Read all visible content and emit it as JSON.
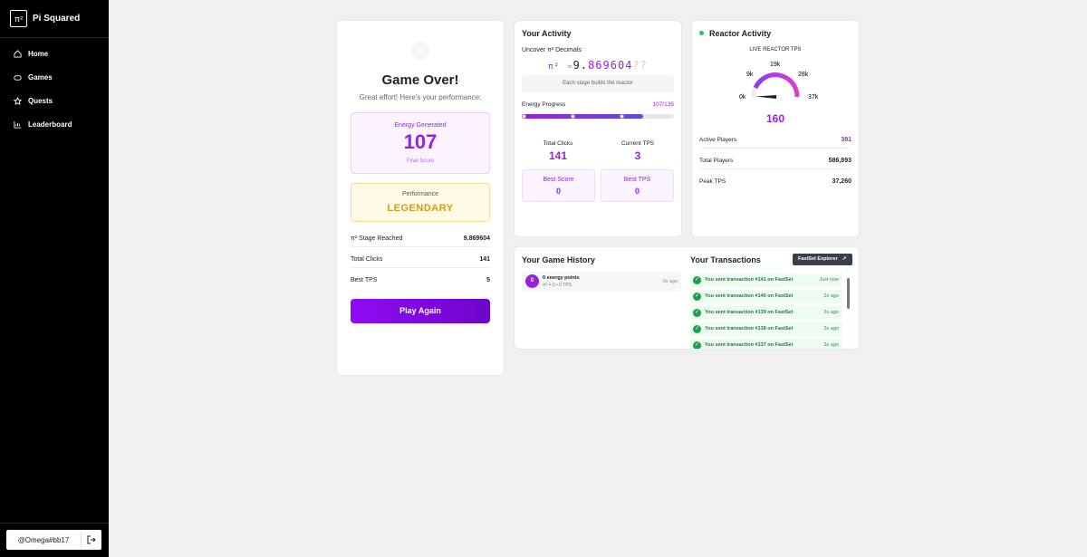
{
  "sidebar": {
    "brand": {
      "logo": "π²",
      "name": "Pi Squared"
    },
    "nav": [
      "Home",
      "Games",
      "Quests",
      "Leaderboard"
    ],
    "user": "@Omega#bb17"
  },
  "game_over": {
    "title": "Game Over!",
    "subtitle": "Great effort! Here's your performance:",
    "energy": {
      "label": "Energy Generated",
      "value": 107,
      "caption": "Final Score"
    },
    "performance": {
      "label": "Performance",
      "value": "LEGENDARY"
    },
    "stats": [
      {
        "label": "π² Stage Reached",
        "value": "9.869604"
      },
      {
        "label": "Total Clicks",
        "value": 141
      },
      {
        "label": "Best TPS",
        "value": 5
      }
    ],
    "button": "Play Again"
  },
  "activity": {
    "title": "Your Activity",
    "decimals_label": "Uncover π² Decimals",
    "formula": {
      "symbol": "π²",
      "equals": "=",
      "integer": 9,
      "point": ".",
      "digits": "869604",
      "unknown": "??"
    },
    "hint": "Each stage builds the reactor",
    "progress": {
      "label": "Energy Progress",
      "value": "107/135"
    },
    "stats": [
      {
        "label": "Total Clicks",
        "value": 141
      },
      {
        "label": "Current TPS",
        "value": 3
      }
    ],
    "bests": [
      {
        "label": "Best Score",
        "value": 0
      },
      {
        "label": "Best TPS",
        "value": 0
      }
    ]
  },
  "reactor": {
    "title": "Reactor Activity",
    "gauge_label": "LIVE REACTOR TPS",
    "gauge_ticks": [
      "0k",
      "9k",
      "19k",
      "28k",
      "37k"
    ],
    "gauge_value": 160,
    "rows": [
      {
        "label": "Active Players",
        "value": 391
      },
      {
        "label": "Total Players",
        "value": "586,893"
      },
      {
        "label": "Peak TPS",
        "value": "37,260"
      }
    ]
  },
  "history": {
    "title": "Your Game History",
    "items": [
      {
        "badge": 0,
        "title": "0 energy points",
        "detail": "π² = 0 • 0 TPS",
        "time": "0s ago"
      }
    ]
  },
  "transactions": {
    "title": "Your Transactions",
    "button": "FastSet Explorer",
    "items": [
      {
        "text": "You sent transaction #141 on FastSet",
        "time": "Just now"
      },
      {
        "text": "You sent transaction #140 on FastSet",
        "time": "2s ago"
      },
      {
        "text": "You sent transaction #139 on FastSet",
        "time": "2s ago"
      },
      {
        "text": "You sent transaction #138 on FastSet",
        "time": "3s ago"
      },
      {
        "text": "You sent transaction #137 on FastSet",
        "time": "3s ago"
      }
    ]
  }
}
